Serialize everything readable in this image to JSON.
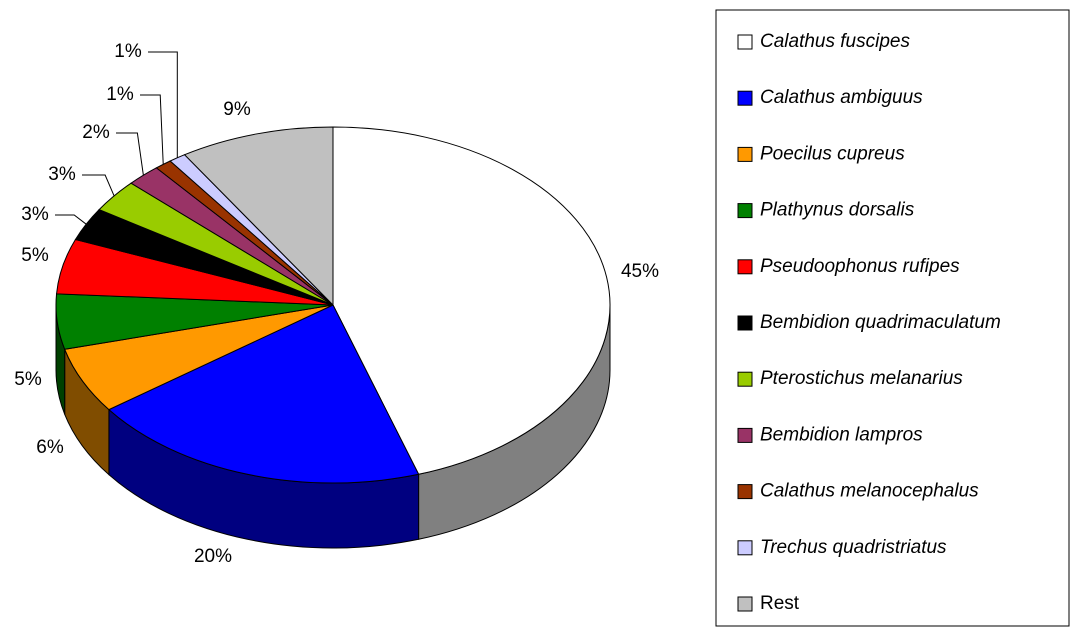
{
  "chart_data": {
    "type": "pie",
    "categories": [
      "Calathus fuscipes",
      "Calathus ambiguus",
      "Poecilus cupreus",
      "Plathynus dorsalis",
      "Pseudoophonus rufipes",
      "Bembidion quadrimaculatum",
      "Pterostichus melanarius",
      "Bembidion lampros",
      "Calathus melanocephalus",
      "Trechus quadristriatus",
      "Rest"
    ],
    "values": [
      45,
      20,
      6,
      5,
      5,
      3,
      3,
      2,
      1,
      1,
      9
    ],
    "value_labels": [
      "45%",
      "20%",
      "6%",
      "5%",
      "5%",
      "3%",
      "3%",
      "2%",
      "1%",
      "1%",
      "9%"
    ],
    "colors": [
      "#ffffff",
      "#0000ff",
      "#ff9900",
      "#008000",
      "#ff0000",
      "#000000",
      "#99cc00",
      "#993366",
      "#993300",
      "#ccccff",
      "#c0c0c0"
    ],
    "legend": "right"
  }
}
